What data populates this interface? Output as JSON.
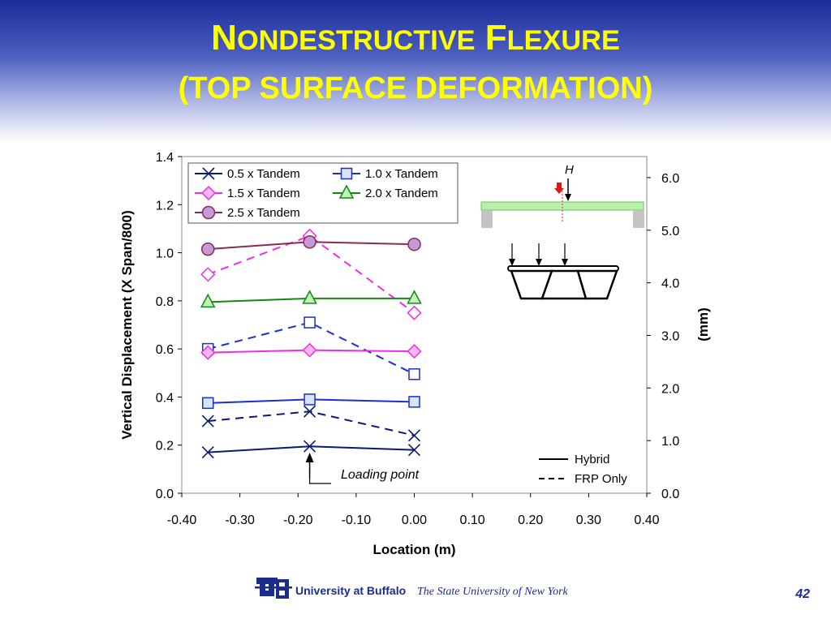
{
  "slide": {
    "title_line1_cap1": "N",
    "title_line1_rest1": "ONDESTRUCTIVE",
    "title_line1_cap2": "F",
    "title_line1_rest2": "LEXURE",
    "title_line2": "(TOP SURFACE DEFORMATION)",
    "footer_university": "University at Buffalo",
    "footer_state": "The State University of New York",
    "page_number": "42"
  },
  "chart_data": {
    "type": "line",
    "xlabel": "Location  (m)",
    "ylabel": "Vertical Displacement (X Span/800)",
    "y2label": "(mm)",
    "xlim": [
      -0.4,
      0.4
    ],
    "ylim": [
      0,
      1.4
    ],
    "y2lim": [
      0,
      6.4
    ],
    "x_ticks": [
      "-0.40",
      "-0.30",
      "-0.20",
      "-0.10",
      "0.00",
      "0.10",
      "0.20",
      "0.30",
      "0.40"
    ],
    "x_tick_values": [
      -0.4,
      -0.3,
      -0.2,
      -0.1,
      0.0,
      0.1,
      0.2,
      0.3,
      0.4
    ],
    "y_ticks": [
      "0.0",
      "0.2",
      "0.4",
      "0.6",
      "0.8",
      "1.0",
      "1.2",
      "1.4"
    ],
    "y_tick_values": [
      0,
      0.2,
      0.4,
      0.6,
      0.8,
      1.0,
      1.2,
      1.4
    ],
    "y2_ticks": [
      "0.0",
      "1.0",
      "2.0",
      "3.0",
      "4.0",
      "5.0",
      "6.0"
    ],
    "y2_tick_values": [
      0,
      1,
      2,
      3,
      4,
      5,
      6
    ],
    "x": [
      -0.355,
      -0.18,
      0.0
    ],
    "series": [
      {
        "name": "0.5 x Tandem",
        "color": "#0a1a70",
        "marker": "x",
        "hybrid": [
          0.17,
          0.195,
          0.18
        ],
        "frp": [
          0.3,
          0.34,
          0.24
        ]
      },
      {
        "name": "1.0 x Tandem",
        "color": "#1a2fd0",
        "marker": "square",
        "hybrid": [
          0.375,
          0.39,
          0.38
        ],
        "frp": [
          0.6,
          0.71,
          0.495
        ]
      },
      {
        "name": "1.5 x Tandem",
        "color": "#ee2ee6",
        "marker": "diamond",
        "hybrid": [
          0.585,
          0.595,
          0.59
        ],
        "frp": [
          0.91,
          1.07,
          0.75
        ]
      },
      {
        "name": "2.0 x Tandem",
        "color": "#128a12",
        "marker": "triangle",
        "hybrid": [
          0.795,
          0.81,
          0.81
        ],
        "frp": []
      },
      {
        "name": "2.5 x Tandem",
        "color": "#8a2a55",
        "marker": "circle",
        "hybrid": [
          1.015,
          1.045,
          1.035
        ],
        "frp": []
      }
    ],
    "line_legend": {
      "hybrid": "Hybrid",
      "frp": "FRP Only"
    },
    "annotation": "Loading point",
    "annotation_x": -0.18,
    "inset_label": "H"
  }
}
